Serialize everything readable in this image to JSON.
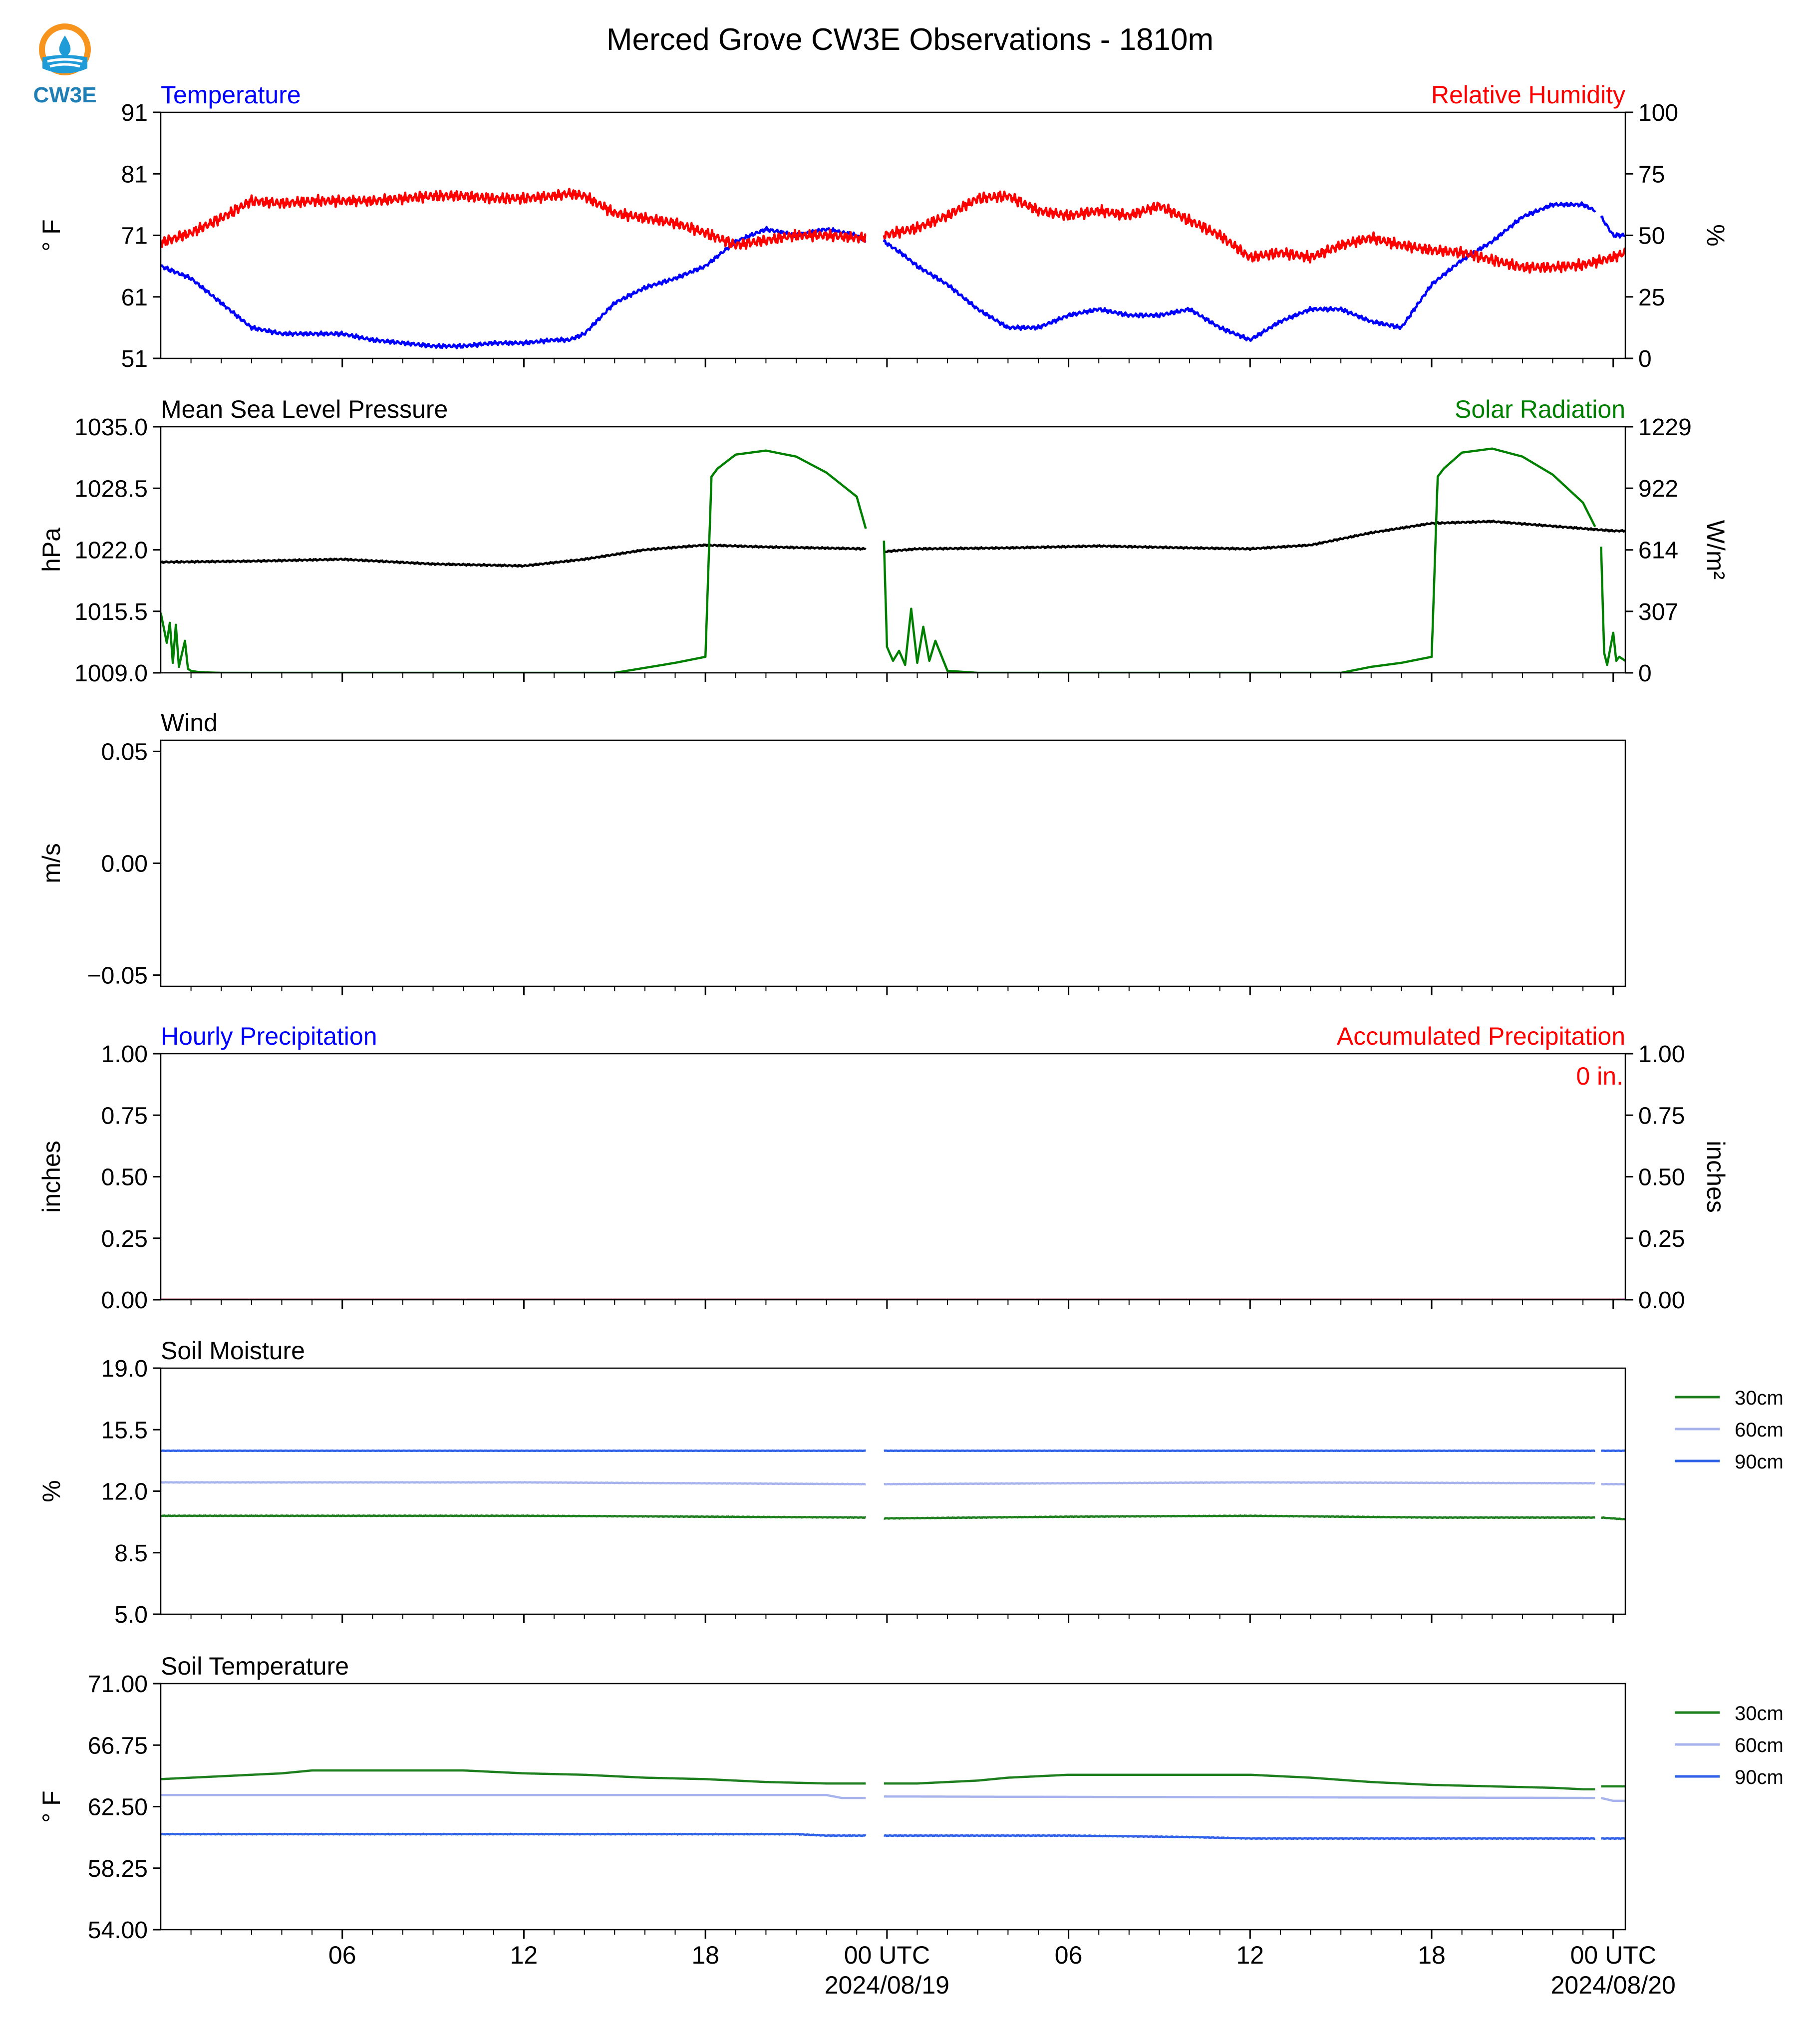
{
  "title": "Merced Grove CW3E Observations - 1810m",
  "logo": {
    "text": "CW3E",
    "colors": {
      "ring": "#f7941d",
      "wave": "#1f9bd7",
      "text": "#1f7fb5"
    }
  },
  "time_axis": {
    "start_hour": 0,
    "end_hour": 48.4,
    "ticks": [
      {
        "hour": 6,
        "label": "06"
      },
      {
        "hour": 12,
        "label": "12"
      },
      {
        "hour": 18,
        "label": "18"
      },
      {
        "hour": 24,
        "label": "00 UTC",
        "date": "2024/08/19"
      },
      {
        "hour": 30,
        "label": "06"
      },
      {
        "hour": 36,
        "label": "12"
      },
      {
        "hour": 42,
        "label": "18"
      },
      {
        "hour": 48,
        "label": "00 UTC",
        "date": "2024/08/20"
      }
    ]
  },
  "legend": [
    {
      "label": "30cm",
      "color": "#1e7f1e"
    },
    {
      "label": "60cm",
      "color": "#a7b3ec"
    },
    {
      "label": "90cm",
      "color": "#2f62e8"
    }
  ],
  "chart_data": [
    {
      "type": "line",
      "title_left": "Temperature",
      "title_left_color": "#0000ff",
      "title_right": "Relative Humidity",
      "title_right_color": "#ff0000",
      "ylabel_left": "° F",
      "ylabel_right": "%",
      "ylim": [
        51,
        91
      ],
      "yticks": [
        51,
        61,
        71,
        81,
        91
      ],
      "ylim_right": [
        0,
        100
      ],
      "yticks_right": [
        0,
        25,
        50,
        75,
        100
      ],
      "series": [
        {
          "axis": "left",
          "color": "#0000ff",
          "noise": 0.35,
          "gaps": [
            [
              23.3,
              23.9
            ],
            [
              47.4,
              47.6
            ]
          ],
          "x": [
            0,
            1,
            2,
            3,
            4,
            5,
            6,
            7,
            8,
            9,
            10,
            11,
            12,
            13,
            13.5,
            14,
            15,
            16,
            17,
            18,
            19,
            20,
            21,
            22,
            23,
            23.3,
            23.9,
            24.5,
            25,
            26,
            27,
            28,
            29,
            30,
            31,
            32,
            33,
            34,
            35,
            36,
            37,
            38,
            39,
            40,
            41,
            42,
            43,
            44,
            45,
            46,
            47,
            47.4,
            47.6,
            48,
            48.4
          ],
          "y": [
            66,
            64,
            60,
            56,
            55,
            55,
            55,
            54,
            53.5,
            53,
            53,
            53.5,
            53.5,
            54,
            54,
            55,
            60,
            62.5,
            64,
            66,
            70,
            72,
            71,
            72,
            71,
            70,
            70,
            68,
            66,
            63,
            59,
            56,
            56,
            58,
            59,
            58,
            58,
            59,
            56,
            54,
            57,
            59,
            59,
            57,
            56,
            63,
            67,
            70,
            74,
            76,
            76,
            75,
            74,
            71,
            71
          ]
        },
        {
          "axis": "right",
          "color": "#ff0000",
          "noise": 0.9,
          "gaps": [
            [
              23.3,
              23.9
            ]
          ],
          "x": [
            0,
            1,
            2,
            3,
            4,
            5,
            6,
            7,
            8,
            9,
            10,
            11,
            12,
            13,
            13.5,
            14,
            15,
            16,
            17,
            18,
            19,
            20,
            21,
            22,
            23,
            23.3,
            23.9,
            25,
            26,
            27,
            28,
            29,
            30,
            31,
            32,
            33,
            34,
            35,
            36,
            37,
            38,
            39,
            40,
            41,
            42,
            43,
            44,
            45,
            46,
            47,
            48,
            48.4
          ],
          "y": [
            47,
            51,
            57,
            64,
            63,
            64,
            64,
            64,
            65,
            66,
            66,
            65,
            65,
            66,
            67,
            66,
            59,
            57,
            55,
            51,
            46,
            48,
            50,
            50,
            49,
            49,
            50,
            53,
            58,
            65,
            66,
            60,
            58,
            60,
            58,
            62,
            56,
            50,
            41,
            43,
            41,
            46,
            49,
            46,
            44,
            43,
            40,
            37,
            37,
            38,
            41,
            43
          ]
        }
      ]
    },
    {
      "type": "line",
      "title_left": "Mean Sea Level Pressure",
      "title_left_color": "#000000",
      "title_right": "Solar Radiation",
      "title_right_color": "#008000",
      "ylabel_left": "hPa",
      "ylabel_right": "W/m²",
      "ylim": [
        1009.0,
        1035.0
      ],
      "yticks": [
        1009.0,
        1015.5,
        1022.0,
        1028.5,
        1035.0
      ],
      "ytick_decimals": 1,
      "ylim_right": [
        0,
        1229
      ],
      "yticks_right": [
        0,
        307,
        614,
        922,
        1229
      ],
      "series": [
        {
          "axis": "left",
          "color": "#000000",
          "noise": 0.15,
          "gaps": [
            [
              23.3,
              23.9
            ]
          ],
          "x": [
            0,
            3,
            6,
            9,
            12,
            14,
            16,
            18,
            20,
            23.3,
            23.9,
            25,
            28,
            31,
            34,
            36,
            38,
            40,
            42,
            44,
            46,
            48,
            48.4
          ],
          "y": [
            1020.7,
            1020.8,
            1021.0,
            1020.5,
            1020.3,
            1021.0,
            1022.0,
            1022.5,
            1022.3,
            1022.1,
            1021.8,
            1022.1,
            1022.2,
            1022.4,
            1022.2,
            1022.1,
            1022.5,
            1023.8,
            1024.8,
            1025.0,
            1024.5,
            1024.0,
            1024.0
          ]
        },
        {
          "axis": "right",
          "color": "#008000",
          "noise": 0,
          "gaps": [
            [
              23.3,
              23.9
            ],
            [
              47.4,
              47.6
            ]
          ],
          "x": [
            0,
            0.2,
            0.3,
            0.4,
            0.5,
            0.6,
            0.8,
            0.9,
            1.0,
            1.2,
            1.5,
            2,
            15,
            16,
            17,
            18,
            18.2,
            18.4,
            19,
            20,
            21,
            22,
            23,
            23.3,
            23.9,
            24,
            24.2,
            24.4,
            24.6,
            24.8,
            25.0,
            25.2,
            25.4,
            25.6,
            26,
            27,
            39,
            40,
            41,
            42,
            42.2,
            42.4,
            43,
            44,
            45,
            46,
            47,
            47.4,
            47.6,
            47.7,
            47.8,
            48.0,
            48.1,
            48.2,
            48.4
          ],
          "y": [
            300,
            150,
            250,
            50,
            240,
            30,
            160,
            20,
            10,
            5,
            2,
            0,
            0,
            25,
            50,
            80,
            980,
            1020,
            1090,
            1110,
            1080,
            1000,
            880,
            720,
            660,
            130,
            60,
            110,
            40,
            320,
            50,
            230,
            60,
            160,
            10,
            0,
            0,
            30,
            50,
            80,
            980,
            1020,
            1100,
            1120,
            1080,
            990,
            850,
            730,
            630,
            100,
            40,
            200,
            60,
            80,
            60
          ]
        }
      ]
    },
    {
      "type": "line",
      "title_left": "Wind",
      "title_left_color": "#000000",
      "ylabel_left": "m/s",
      "ylim": [
        -0.055,
        0.055
      ],
      "yticks": [
        -0.05,
        0.0,
        0.05
      ],
      "ytick_decimals": 2,
      "series": []
    },
    {
      "type": "line",
      "title_left": "Hourly Precipitation",
      "title_left_color": "#0000ff",
      "title_right": "Accumulated Precipitation",
      "title_right_color": "#ff0000",
      "ylabel_left": "inches",
      "ylabel_right": "inches",
      "ylim": [
        0,
        1
      ],
      "yticks": [
        0.0,
        0.25,
        0.5,
        0.75,
        1.0
      ],
      "ytick_decimals": 2,
      "ylim_right": [
        0,
        1
      ],
      "yticks_right": [
        0.0,
        0.25,
        0.5,
        0.75,
        1.0
      ],
      "ytick_decimals_right": 2,
      "annotation": "0 in.",
      "annotation_color": "#ff0000",
      "series": [
        {
          "axis": "left",
          "color": "#0000ff",
          "noise": 0,
          "x": [
            0,
            48.4
          ],
          "y": [
            0,
            0
          ]
        },
        {
          "axis": "right",
          "color": "#ff0000",
          "noise": 0,
          "x": [
            0,
            48.4
          ],
          "y": [
            0,
            0
          ]
        }
      ]
    },
    {
      "type": "line",
      "title_left": "Soil Moisture",
      "title_left_color": "#000000",
      "ylabel_left": "%",
      "ylim": [
        5.0,
        19.0
      ],
      "yticks": [
        5.0,
        8.5,
        12.0,
        15.5,
        19.0
      ],
      "ytick_decimals": 1,
      "legend": true,
      "series": [
        {
          "axis": "left",
          "name": "30cm",
          "color": "#1e7f1e",
          "noise": 0.05,
          "gaps": [
            [
              23.3,
              23.9
            ],
            [
              47.4,
              47.6
            ]
          ],
          "x": [
            0,
            6,
            12,
            18,
            23.3,
            23.9,
            30,
            36,
            42,
            47.4,
            47.6,
            48.4
          ],
          "y": [
            10.6,
            10.6,
            10.6,
            10.55,
            10.5,
            10.45,
            10.55,
            10.6,
            10.5,
            10.5,
            10.5,
            10.4
          ]
        },
        {
          "axis": "left",
          "name": "60cm",
          "color": "#a7b3ec",
          "noise": 0.04,
          "gaps": [
            [
              23.3,
              23.9
            ],
            [
              47.4,
              47.6
            ]
          ],
          "x": [
            0,
            12,
            23.3,
            23.9,
            36,
            47.4,
            47.6,
            48.4
          ],
          "y": [
            12.5,
            12.5,
            12.4,
            12.4,
            12.5,
            12.45,
            12.4,
            12.4
          ]
        },
        {
          "axis": "left",
          "name": "90cm",
          "color": "#2f62e8",
          "noise": 0.03,
          "gaps": [
            [
              23.3,
              23.9
            ],
            [
              47.4,
              47.6
            ]
          ],
          "x": [
            0,
            12,
            23.3,
            23.9,
            36,
            47.4,
            47.6,
            48.4
          ],
          "y": [
            14.3,
            14.3,
            14.3,
            14.3,
            14.3,
            14.3,
            14.3,
            14.3
          ]
        }
      ]
    },
    {
      "type": "line",
      "title_left": "Soil Temperature",
      "title_left_color": "#000000",
      "ylabel_left": "° F",
      "ylim": [
        54.0,
        71.0
      ],
      "yticks": [
        54.0,
        58.25,
        62.5,
        66.75,
        71.0
      ],
      "ytick_decimals": 2,
      "legend": true,
      "series": [
        {
          "axis": "left",
          "name": "30cm",
          "color": "#1e7f1e",
          "noise": 0,
          "gaps": [
            [
              23.3,
              23.9
            ],
            [
              47.4,
              47.6
            ]
          ],
          "x": [
            0,
            2,
            4,
            5,
            10,
            12,
            14,
            16,
            18,
            20,
            22,
            23.3,
            23.9,
            25,
            27,
            28,
            30,
            34,
            36,
            38,
            40,
            42,
            44,
            46,
            47,
            47.4,
            47.6,
            48.4
          ],
          "y": [
            64.4,
            64.6,
            64.8,
            65.0,
            65.0,
            64.8,
            64.7,
            64.5,
            64.4,
            64.2,
            64.1,
            64.1,
            64.1,
            64.1,
            64.3,
            64.5,
            64.7,
            64.7,
            64.7,
            64.5,
            64.2,
            64.0,
            63.9,
            63.8,
            63.7,
            63.7,
            63.9,
            63.9
          ]
        },
        {
          "axis": "left",
          "name": "60cm",
          "color": "#a7b3ec",
          "noise": 0,
          "gaps": [
            [
              23.3,
              23.9
            ],
            [
              47.4,
              47.6
            ]
          ],
          "x": [
            0,
            22,
            22.5,
            23.3,
            23.9,
            47.4,
            47.6,
            48,
            48.4
          ],
          "y": [
            63.3,
            63.3,
            63.1,
            63.1,
            63.2,
            63.1,
            63.1,
            62.9,
            62.9
          ]
        },
        {
          "axis": "left",
          "name": "90cm",
          "color": "#2f62e8",
          "noise": 0.06,
          "gaps": [
            [
              23.3,
              23.9
            ],
            [
              47.4,
              47.6
            ]
          ],
          "x": [
            0,
            21,
            22,
            23.3,
            23.9,
            30,
            34,
            36,
            47.4,
            47.6,
            48.4
          ],
          "y": [
            60.6,
            60.6,
            60.5,
            60.5,
            60.5,
            60.5,
            60.4,
            60.3,
            60.3,
            60.3,
            60.3
          ]
        }
      ]
    }
  ]
}
